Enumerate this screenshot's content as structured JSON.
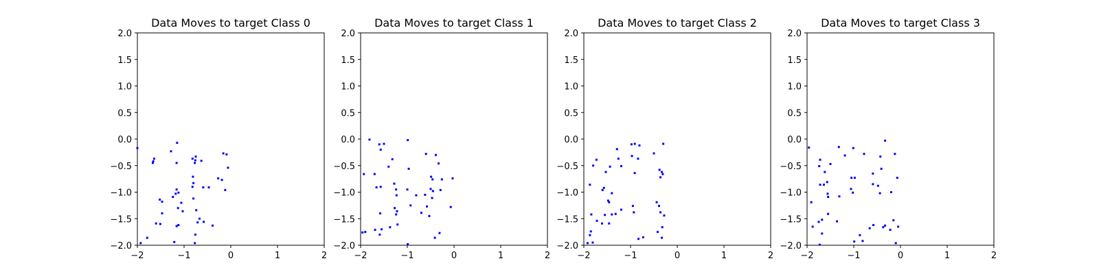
{
  "chart_data": [
    {
      "type": "scatter",
      "title": "Data Moves to target Class 0",
      "xlim": [
        -2,
        2
      ],
      "ylim": [
        -2,
        2
      ],
      "xticks": [
        -2,
        -1,
        0,
        1,
        2
      ],
      "yticks": [
        -2.0,
        -1.5,
        -1.0,
        -0.5,
        0.0,
        0.5,
        1.0,
        1.5,
        2.0
      ],
      "xtick_labels": [
        "−2",
        "−1",
        "0",
        "1",
        "2"
      ],
      "ytick_labels": [
        "−2.0",
        "−1.5",
        "−1.0",
        "−0.5",
        "0.0",
        "0.5",
        "1.0",
        "1.5",
        "2.0"
      ],
      "color": "#0000ff",
      "grid": false,
      "points": [
        [
          -2.0,
          -0.17
        ],
        [
          -1.28,
          -0.23
        ],
        [
          -1.15,
          -0.07
        ],
        [
          -1.66,
          -0.42
        ],
        [
          -1.64,
          -0.37
        ],
        [
          -1.67,
          -0.45
        ],
        [
          -1.16,
          -0.45
        ],
        [
          -0.82,
          -0.37
        ],
        [
          -0.76,
          -0.4
        ],
        [
          -0.75,
          -0.33
        ],
        [
          -0.77,
          -0.45
        ],
        [
          -0.63,
          -0.41
        ],
        [
          -0.16,
          -0.27
        ],
        [
          -0.09,
          -0.29
        ],
        [
          -0.06,
          -0.54
        ],
        [
          -0.27,
          -0.74
        ],
        [
          -0.19,
          -0.77
        ],
        [
          -0.12,
          -0.96
        ],
        [
          -0.47,
          -0.91
        ],
        [
          -0.59,
          -0.91
        ],
        [
          -0.81,
          -0.71
        ],
        [
          -0.8,
          -0.83
        ],
        [
          -0.82,
          -0.9
        ],
        [
          -1.16,
          -0.95
        ],
        [
          -1.18,
          -1.03
        ],
        [
          -1.12,
          -1.01
        ],
        [
          -1.06,
          -1.2
        ],
        [
          -1.24,
          -1.09
        ],
        [
          -1.52,
          -1.14
        ],
        [
          -1.47,
          -1.18
        ],
        [
          -1.47,
          -1.4
        ],
        [
          -0.8,
          -1.12
        ],
        [
          -1.13,
          -1.3
        ],
        [
          -1.03,
          -1.36
        ],
        [
          -0.74,
          -1.34
        ],
        [
          -0.67,
          -1.5
        ],
        [
          -0.71,
          -1.57
        ],
        [
          -0.58,
          -1.56
        ],
        [
          -0.39,
          -1.63
        ],
        [
          -1.16,
          -1.64
        ],
        [
          -1.12,
          -1.62
        ],
        [
          -1.6,
          -1.59
        ],
        [
          -1.51,
          -1.6
        ],
        [
          -0.76,
          -1.8
        ],
        [
          -1.79,
          -1.86
        ],
        [
          -1.21,
          -1.94
        ],
        [
          -0.77,
          -1.96
        ],
        [
          -1.93,
          -1.96
        ]
      ]
    },
    {
      "type": "scatter",
      "title": "Data Moves to target Class 1",
      "xlim": [
        -2,
        2
      ],
      "ylim": [
        -2,
        2
      ],
      "xticks": [
        -2,
        -1,
        0,
        1,
        2
      ],
      "yticks": [
        -2.0,
        -1.5,
        -1.0,
        -0.5,
        0.0,
        0.5,
        1.0,
        1.5,
        2.0
      ],
      "xtick_labels": [
        "−2",
        "−1",
        "0",
        "1",
        "2"
      ],
      "ytick_labels": [
        "−2.0",
        "−1.5",
        "−1.0",
        "−0.5",
        "0.0",
        "0.5",
        "1.0",
        "1.5",
        "2.0"
      ],
      "color": "#0000ff",
      "grid": false,
      "points": [
        [
          -1.81,
          -0.01
        ],
        [
          -1.6,
          -0.1
        ],
        [
          -1.5,
          -0.09
        ],
        [
          -1.57,
          -0.2
        ],
        [
          -0.99,
          -0.02
        ],
        [
          -0.6,
          -0.28
        ],
        [
          -0.39,
          -0.3
        ],
        [
          -1.32,
          -0.38
        ],
        [
          -1.4,
          -0.52
        ],
        [
          -0.97,
          -0.56
        ],
        [
          -0.33,
          -0.46
        ],
        [
          -0.49,
          -0.71
        ],
        [
          -0.46,
          -0.76
        ],
        [
          -0.26,
          -0.76
        ],
        [
          -0.03,
          -0.74
        ],
        [
          -1.93,
          -0.66
        ],
        [
          -1.7,
          -0.66
        ],
        [
          -1.66,
          -0.91
        ],
        [
          -1.57,
          -0.9
        ],
        [
          -1.28,
          -0.84
        ],
        [
          -1.24,
          -0.95
        ],
        [
          -1.0,
          -0.95
        ],
        [
          -0.81,
          -1.06
        ],
        [
          -1.23,
          -1.06
        ],
        [
          -0.62,
          -1.05
        ],
        [
          -0.5,
          -0.94
        ],
        [
          -0.45,
          -0.98
        ],
        [
          -0.29,
          -0.96
        ],
        [
          -0.47,
          -1.11
        ],
        [
          -0.58,
          -1.27
        ],
        [
          -0.93,
          -1.25
        ],
        [
          -1.27,
          -1.3
        ],
        [
          -1.22,
          -1.36
        ],
        [
          -1.24,
          -1.42
        ],
        [
          -1.58,
          -1.4
        ],
        [
          -0.7,
          -1.39
        ],
        [
          -0.53,
          -1.45
        ],
        [
          -0.07,
          -1.28
        ],
        [
          -0.31,
          -1.77
        ],
        [
          -1.21,
          -1.61
        ],
        [
          -1.37,
          -1.66
        ],
        [
          -1.69,
          -1.71
        ],
        [
          -1.55,
          -1.7
        ],
        [
          -1.59,
          -1.8
        ],
        [
          -1.9,
          -1.75
        ],
        [
          -1.96,
          -1.76
        ],
        [
          -0.41,
          -1.86
        ],
        [
          -0.99,
          -1.98
        ]
      ]
    },
    {
      "type": "scatter",
      "title": "Data Moves to target Class 2",
      "xlim": [
        -2,
        2
      ],
      "ylim": [
        -2,
        2
      ],
      "xticks": [
        -2,
        -1,
        0,
        1,
        2
      ],
      "yticks": [
        -2.0,
        -1.5,
        -1.0,
        -0.5,
        0.0,
        0.5,
        1.0,
        1.5,
        2.0
      ],
      "xtick_labels": [
        "−2",
        "−1",
        "0",
        "1",
        "2"
      ],
      "ytick_labels": [
        "−2.0",
        "−1.5",
        "−1.0",
        "−0.5",
        "0.0",
        "0.5",
        "1.0",
        "1.5",
        "2.0"
      ],
      "color": "#0000ff",
      "grid": false,
      "points": [
        [
          -0.98,
          -0.1
        ],
        [
          -0.91,
          -0.09
        ],
        [
          -0.81,
          -0.12
        ],
        [
          -0.3,
          -0.09
        ],
        [
          -1.29,
          -0.19
        ],
        [
          -0.5,
          -0.27
        ],
        [
          -1.26,
          -0.37
        ],
        [
          -0.97,
          -0.32
        ],
        [
          -0.84,
          -0.37
        ],
        [
          -1.73,
          -0.39
        ],
        [
          -1.8,
          -0.5
        ],
        [
          -1.44,
          -0.52
        ],
        [
          -1.2,
          -0.51
        ],
        [
          -1.53,
          -0.62
        ],
        [
          -0.91,
          -0.64
        ],
        [
          -0.38,
          -0.58
        ],
        [
          -0.33,
          -0.62
        ],
        [
          -0.31,
          -0.66
        ],
        [
          -0.36,
          -0.72
        ],
        [
          -1.6,
          -0.96
        ],
        [
          -1.57,
          -0.92
        ],
        [
          -1.4,
          -1.02
        ],
        [
          -1.48,
          -1.16
        ],
        [
          -1.46,
          -1.19
        ],
        [
          -1.87,
          -0.86
        ],
        [
          -0.95,
          -1.26
        ],
        [
          -0.44,
          -1.19
        ],
        [
          -0.39,
          -1.26
        ],
        [
          -0.36,
          -1.38
        ],
        [
          -0.28,
          -1.44
        ],
        [
          -0.93,
          -1.38
        ],
        [
          -1.2,
          -1.33
        ],
        [
          -1.32,
          -1.41
        ],
        [
          -1.4,
          -1.42
        ],
        [
          -1.55,
          -1.43
        ],
        [
          -1.46,
          -1.59
        ],
        [
          -1.61,
          -1.59
        ],
        [
          -1.72,
          -1.54
        ],
        [
          -1.84,
          -1.42
        ],
        [
          -1.85,
          -1.74
        ],
        [
          -1.87,
          -1.81
        ],
        [
          -1.81,
          -1.95
        ],
        [
          -0.32,
          -1.66
        ],
        [
          -0.42,
          -1.75
        ],
        [
          -0.33,
          -1.86
        ],
        [
          -0.73,
          -1.85
        ],
        [
          -0.83,
          -1.88
        ],
        [
          -1.92,
          -1.96
        ]
      ]
    },
    {
      "type": "scatter",
      "title": "Data Moves to target Class 3",
      "xlim": [
        -2,
        2
      ],
      "ylim": [
        -2,
        2
      ],
      "xticks": [
        -2,
        -1,
        0,
        1,
        2
      ],
      "yticks": [
        -2.0,
        -1.5,
        -1.0,
        -0.5,
        0.0,
        0.5,
        1.0,
        1.5,
        2.0
      ],
      "xtick_labels": [
        "−2",
        "−1",
        "0",
        "1",
        "2"
      ],
      "ytick_labels": [
        "−2.0",
        "−1.5",
        "−1.0",
        "−0.5",
        "0.0",
        "0.5",
        "1.0",
        "1.5",
        "2.0"
      ],
      "color": "#0000ff",
      "grid": false,
      "points": [
        [
          -1.96,
          -0.16
        ],
        [
          -1.32,
          -0.15
        ],
        [
          -1.01,
          -0.17
        ],
        [
          -0.33,
          -0.03
        ],
        [
          -0.12,
          -0.28
        ],
        [
          -1.19,
          -0.31
        ],
        [
          -1.72,
          -0.39
        ],
        [
          -1.74,
          -0.51
        ],
        [
          -1.5,
          -0.47
        ],
        [
          -0.78,
          -0.28
        ],
        [
          -0.43,
          -0.33
        ],
        [
          -0.41,
          -0.56
        ],
        [
          -1.62,
          -0.62
        ],
        [
          -0.59,
          -0.65
        ],
        [
          -0.07,
          -0.73
        ],
        [
          -1.05,
          -0.73
        ],
        [
          -0.98,
          -0.73
        ],
        [
          -1.72,
          -0.86
        ],
        [
          -1.64,
          -0.86
        ],
        [
          -1.57,
          -0.81
        ],
        [
          -1.56,
          -1.03
        ],
        [
          -1.55,
          -1.09
        ],
        [
          -1.06,
          -0.94
        ],
        [
          -1.02,
          -1.01
        ],
        [
          -0.59,
          -0.85
        ],
        [
          -0.48,
          -0.88
        ],
        [
          -0.44,
          -1.02
        ],
        [
          -0.2,
          -1.0
        ],
        [
          -1.91,
          -1.19
        ],
        [
          -1.31,
          -1.08
        ],
        [
          -1.55,
          -1.41
        ],
        [
          -1.68,
          -1.52
        ],
        [
          -1.75,
          -1.56
        ],
        [
          -1.36,
          -1.55
        ],
        [
          -1.88,
          -1.65
        ],
        [
          -0.37,
          -1.66
        ],
        [
          -0.33,
          -1.63
        ],
        [
          -0.22,
          -1.71
        ],
        [
          -0.15,
          -1.53
        ],
        [
          -0.05,
          -1.65
        ],
        [
          -0.58,
          -1.62
        ],
        [
          -0.66,
          -1.68
        ],
        [
          -0.87,
          -1.81
        ],
        [
          -0.81,
          -1.92
        ],
        [
          -0.99,
          -1.93
        ],
        [
          -1.68,
          -1.78
        ],
        [
          -1.73,
          -1.99
        ],
        [
          -0.1,
          -1.96
        ]
      ]
    }
  ]
}
